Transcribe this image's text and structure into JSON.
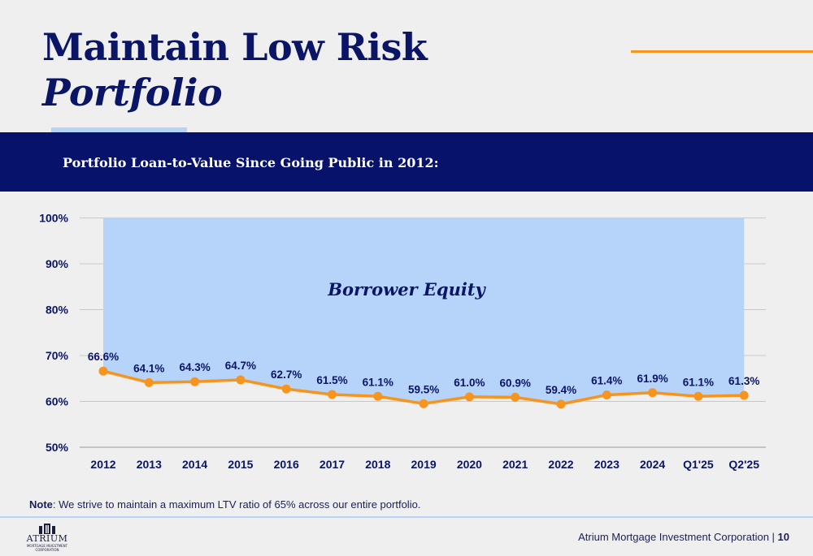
{
  "slide": {
    "title_line1": "Maintain Low Risk",
    "title_line2": "Portfolio",
    "subtitle": "Portfolio Loan-to-Value Since Going Public in 2012:",
    "note_label": "Note",
    "note_text": ": We strive to maintain a maximum LTV ratio of 65% across our entire portfolio.",
    "footer_company": "Atrium Mortgage Investment Corporation",
    "footer_separator": " | ",
    "page_number": "10",
    "logo_name": "ATRIUM",
    "logo_sub": "MORTGAGE INVESTMENT CORPORATION",
    "colors": {
      "navy": "#0b1566",
      "banner": "#07136b",
      "orange": "#f7941d",
      "light_blue": "#b6d4fa",
      "equity_fill": "#b6d4fa"
    }
  },
  "chart_data": {
    "type": "line",
    "title": "Portfolio Loan-to-Value Since Going Public in 2012:",
    "categories": [
      "2012",
      "2013",
      "2014",
      "2015",
      "2016",
      "2017",
      "2018",
      "2019",
      "2020",
      "2021",
      "2022",
      "2023",
      "2024",
      "Q1'25",
      "Q2'25"
    ],
    "series": [
      {
        "values": [
          66.6,
          64.1,
          64.3,
          64.7,
          62.7,
          61.5,
          61.1,
          59.5,
          61.0,
          60.9,
          59.4,
          61.4,
          61.9,
          61.1,
          61.3
        ],
        "labels": [
          "66.6%",
          "64.1%",
          "64.3%",
          "64.7%",
          "62.7%",
          "61.5%",
          "61.1%",
          "59.5%",
          "61.0%",
          "60.9%",
          "59.4%",
          "61.4%",
          "61.9%",
          "61.1%",
          "61.3%"
        ],
        "color": "#f7941d"
      }
    ],
    "area_annotation": "Borrower Equity",
    "area_upper": 100,
    "ylim": [
      50,
      100
    ],
    "yticks": [
      50,
      60,
      70,
      80,
      90,
      100
    ],
    "ytick_labels": [
      "50%",
      "60%",
      "70%",
      "80%",
      "90%",
      "100%"
    ],
    "grid": true,
    "legend": "none"
  }
}
